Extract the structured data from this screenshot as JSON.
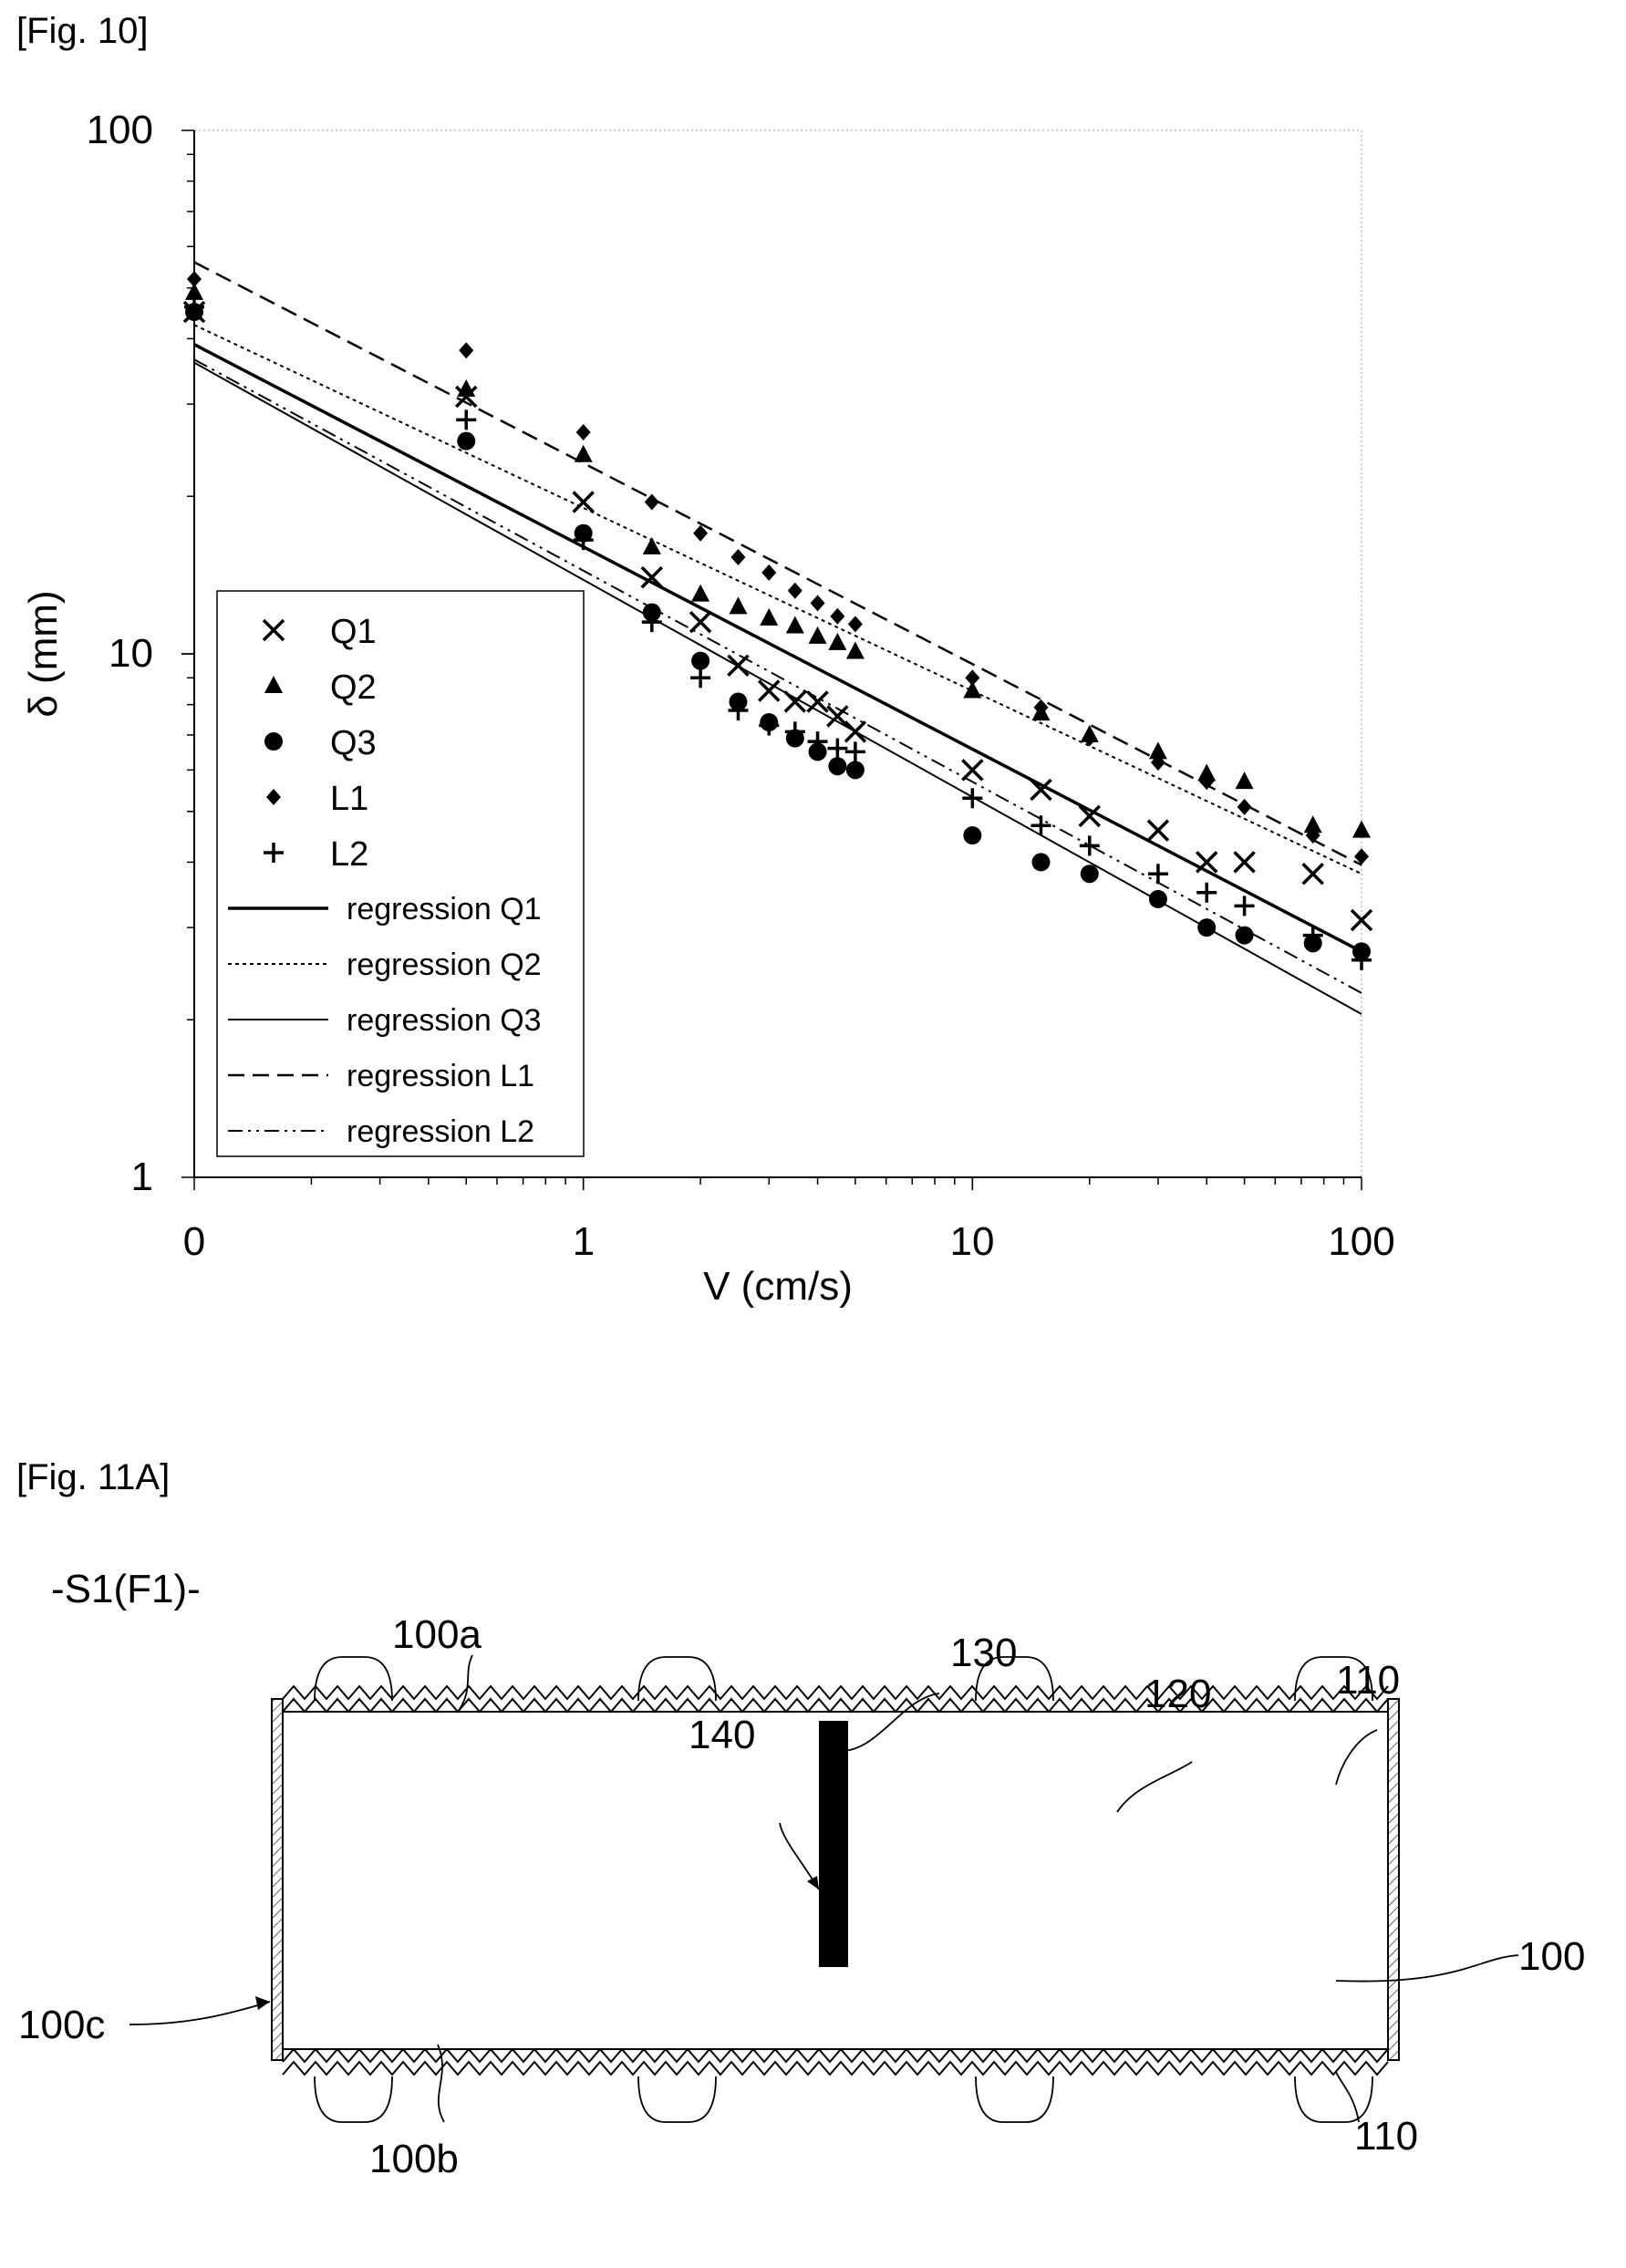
{
  "fig10_label": "[Fig. 10]",
  "fig11_label": "[Fig. 11A]",
  "chart_data": {
    "type": "scatter",
    "title": "",
    "xlabel": "V (cm/s)",
    "ylabel": "δ (mm)",
    "x_scale": "log",
    "y_scale": "log",
    "xlim": [
      0.1,
      100
    ],
    "ylim": [
      1,
      100
    ],
    "x_tick_labels": [
      "0",
      "1",
      "10",
      "100"
    ],
    "y_tick_labels": [
      "1",
      "10",
      "100"
    ],
    "grid": false,
    "legend_position": "bottom-left",
    "series": [
      {
        "name": "Q1",
        "marker": "x",
        "x": [
          0.1,
          0.5,
          1,
          1.5,
          2,
          2.5,
          3,
          3.5,
          4,
          4.5,
          5,
          10,
          15,
          20,
          30,
          40,
          50,
          75,
          100
        ],
        "y": [
          45,
          31,
          19.5,
          14,
          11.5,
          9.5,
          8.5,
          8.1,
          8.1,
          7.6,
          7.1,
          6,
          5.5,
          4.9,
          4.6,
          4,
          4,
          3.8,
          3.1
        ]
      },
      {
        "name": "Q2",
        "marker": "triangle",
        "x": [
          0.1,
          0.5,
          1,
          1.5,
          2,
          2.5,
          3,
          3.5,
          4,
          4.5,
          5,
          10,
          15,
          20,
          30,
          40,
          50,
          75,
          100
        ],
        "y": [
          49,
          32,
          24,
          16,
          13,
          12.3,
          11.7,
          11.3,
          10.8,
          10.5,
          10.1,
          8.5,
          7.7,
          7,
          6.5,
          5.9,
          5.7,
          4.7,
          4.6
        ]
      },
      {
        "name": "Q3",
        "marker": "circle",
        "x": [
          0.1,
          0.5,
          1,
          1.5,
          2,
          2.5,
          3,
          3.5,
          4,
          4.5,
          5,
          10,
          15,
          20,
          30,
          40,
          50,
          75,
          100
        ],
        "y": [
          45,
          25.5,
          17,
          12,
          9.7,
          8.1,
          7.4,
          6.9,
          6.5,
          6.1,
          6,
          4.5,
          4,
          3.8,
          3.4,
          3,
          2.9,
          2.8,
          2.7
        ]
      },
      {
        "name": "L1",
        "marker": "diamond",
        "x": [
          0.1,
          0.5,
          1,
          1.5,
          2,
          2.5,
          3,
          3.5,
          4,
          4.5,
          5,
          10,
          15,
          20,
          30,
          40,
          50,
          75,
          100
        ],
        "y": [
          52,
          38,
          26.5,
          19.5,
          17,
          15.3,
          14.3,
          13.2,
          12.5,
          11.8,
          11.4,
          9,
          7.9,
          6.9,
          6.2,
          5.7,
          5.1,
          4.5,
          4.1
        ]
      },
      {
        "name": "L2",
        "marker": "plus",
        "x": [
          0.1,
          0.5,
          1,
          1.5,
          2,
          2.5,
          3,
          3.5,
          4,
          4.5,
          5,
          10,
          15,
          20,
          30,
          40,
          50,
          75,
          100
        ],
        "y": [
          46,
          28,
          16.5,
          11.5,
          9,
          7.8,
          7.3,
          7.1,
          6.8,
          6.6,
          6.5,
          5.3,
          4.7,
          4.3,
          3.8,
          3.5,
          3.3,
          2.9,
          2.6
        ]
      }
    ],
    "regression_lines": [
      {
        "name": "regression Q1",
        "style": "thick-solid",
        "x": [
          0.1,
          100
        ],
        "y": [
          39,
          2.7
        ]
      },
      {
        "name": "regression Q2",
        "style": "dotted",
        "x": [
          0.1,
          100
        ],
        "y": [
          42.5,
          3.8
        ]
      },
      {
        "name": "regression Q3",
        "style": "solid",
        "x": [
          0.1,
          100
        ],
        "y": [
          36,
          2.05
        ]
      },
      {
        "name": "regression L1",
        "style": "dashed",
        "x": [
          0.1,
          100
        ],
        "y": [
          56,
          3.95
        ]
      },
      {
        "name": "regression L2",
        "style": "dash-dot",
        "x": [
          0.1,
          100
        ],
        "y": [
          36.5,
          2.25
        ]
      }
    ]
  },
  "diagram": {
    "title": "-S1(F1)-",
    "labels": {
      "l100a": "100a",
      "l130": "130",
      "l140": "140",
      "l120": "120",
      "l110_top": "110",
      "l100c": "100c",
      "l100": "100",
      "l100b": "100b",
      "l110_bottom": "110"
    }
  }
}
